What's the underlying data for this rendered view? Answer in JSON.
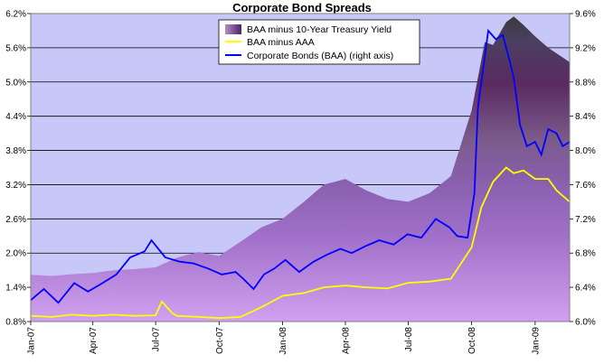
{
  "chart_data": {
    "type": "area",
    "title": "Corporate Bond Spreads",
    "xlabel": "",
    "ylabel": "",
    "x_ticks": [
      "Jan-07",
      "Apr-07",
      "Jul-07",
      "Oct-07",
      "Jan-08",
      "Apr-08",
      "Jul-08",
      "Oct-08",
      "Jan-09"
    ],
    "x_range": [
      "2007-01-01",
      "2009-02-20"
    ],
    "left_axis": {
      "ticks": [
        "0.8%",
        "1.4%",
        "2.0%",
        "2.6%",
        "3.2%",
        "3.8%",
        "4.4%",
        "5.0%",
        "5.6%",
        "6.2%"
      ],
      "range": [
        0.8,
        6.2
      ]
    },
    "right_axis": {
      "ticks": [
        "6.0%",
        "6.4%",
        "6.8%",
        "7.2%",
        "7.6%",
        "8.0%",
        "8.4%",
        "8.8%",
        "9.2%",
        "9.6%"
      ],
      "range": [
        6.0,
        9.6
      ]
    },
    "grid": "horizontal",
    "legend_position": "top-center",
    "plot_background": "#c8c8f8",
    "series": [
      {
        "name": "BAA minus 10-Year Treasury Yield",
        "kind": "area",
        "axis": "left",
        "color": "#6a2a7a",
        "x": [
          "2007-01-01",
          "2007-02-01",
          "2007-03-01",
          "2007-04-01",
          "2007-05-01",
          "2007-06-01",
          "2007-07-01",
          "2007-08-01",
          "2007-09-01",
          "2007-10-01",
          "2007-11-01",
          "2007-12-01",
          "2008-01-01",
          "2008-02-01",
          "2008-03-01",
          "2008-04-01",
          "2008-05-01",
          "2008-06-01",
          "2008-07-01",
          "2008-08-01",
          "2008-09-01",
          "2008-10-01",
          "2008-10-20",
          "2008-11-01",
          "2008-11-20",
          "2008-12-01",
          "2008-12-15",
          "2009-01-01",
          "2009-01-20",
          "2009-02-20"
        ],
        "y": [
          1.62,
          1.6,
          1.63,
          1.65,
          1.7,
          1.72,
          1.75,
          1.92,
          2.02,
          1.95,
          2.2,
          2.45,
          2.6,
          2.9,
          3.2,
          3.3,
          3.1,
          2.95,
          2.9,
          3.05,
          3.35,
          4.5,
          5.7,
          5.65,
          6.05,
          6.15,
          6.0,
          5.8,
          5.6,
          5.35
        ]
      },
      {
        "name": "BAA minus AAA",
        "kind": "line",
        "axis": "left",
        "color": "#ffff00",
        "x": [
          "2007-01-01",
          "2007-02-01",
          "2007-03-01",
          "2007-04-01",
          "2007-05-01",
          "2007-06-01",
          "2007-07-01",
          "2007-07-10",
          "2007-07-25",
          "2007-08-01",
          "2007-09-01",
          "2007-10-01",
          "2007-11-01",
          "2007-12-01",
          "2008-01-01",
          "2008-02-01",
          "2008-03-01",
          "2008-04-01",
          "2008-05-01",
          "2008-06-01",
          "2008-07-01",
          "2008-08-01",
          "2008-09-01",
          "2008-10-01",
          "2008-10-15",
          "2008-11-01",
          "2008-11-20",
          "2008-12-01",
          "2008-12-15",
          "2009-01-01",
          "2009-01-20",
          "2009-02-01",
          "2009-02-20"
        ],
        "y": [
          0.9,
          0.88,
          0.92,
          0.9,
          0.92,
          0.9,
          0.91,
          1.15,
          0.95,
          0.9,
          0.88,
          0.86,
          0.88,
          1.05,
          1.25,
          1.3,
          1.4,
          1.43,
          1.4,
          1.38,
          1.48,
          1.5,
          1.55,
          2.1,
          2.8,
          3.25,
          3.5,
          3.4,
          3.45,
          3.3,
          3.3,
          3.1,
          2.9
        ]
      },
      {
        "name": "Corporate Bonds (BAA) (right axis)",
        "kind": "line",
        "axis": "right",
        "color": "#0000ff",
        "x": [
          "2007-01-01",
          "2007-01-20",
          "2007-02-10",
          "2007-03-05",
          "2007-03-25",
          "2007-04-15",
          "2007-05-05",
          "2007-05-25",
          "2007-06-15",
          "2007-06-25",
          "2007-07-15",
          "2007-08-05",
          "2007-08-25",
          "2007-09-15",
          "2007-10-05",
          "2007-10-25",
          "2007-11-05",
          "2007-11-20",
          "2007-12-05",
          "2007-12-20",
          "2008-01-05",
          "2008-01-25",
          "2008-02-15",
          "2008-03-05",
          "2008-03-25",
          "2008-04-10",
          "2008-04-30",
          "2008-05-20",
          "2008-06-10",
          "2008-06-30",
          "2008-07-20",
          "2008-08-10",
          "2008-08-30",
          "2008-09-10",
          "2008-09-25",
          "2008-10-05",
          "2008-10-10",
          "2008-10-25",
          "2008-11-05",
          "2008-11-15",
          "2008-11-25",
          "2008-12-01",
          "2008-12-10",
          "2008-12-20",
          "2009-01-01",
          "2009-01-10",
          "2009-01-20",
          "2009-02-01",
          "2009-02-10",
          "2009-02-20"
        ],
        "y": [
          6.25,
          6.38,
          6.22,
          6.45,
          6.35,
          6.45,
          6.55,
          6.75,
          6.82,
          6.95,
          6.75,
          6.7,
          6.68,
          6.62,
          6.55,
          6.58,
          6.5,
          6.38,
          6.55,
          6.62,
          6.72,
          6.58,
          6.7,
          6.78,
          6.85,
          6.8,
          6.88,
          6.95,
          6.9,
          7.02,
          6.98,
          7.2,
          7.1,
          7.0,
          6.98,
          7.5,
          8.5,
          9.4,
          9.3,
          9.35,
          9.05,
          8.85,
          8.3,
          8.05,
          8.1,
          7.95,
          8.25,
          8.2,
          8.05,
          8.1
        ]
      }
    ]
  }
}
